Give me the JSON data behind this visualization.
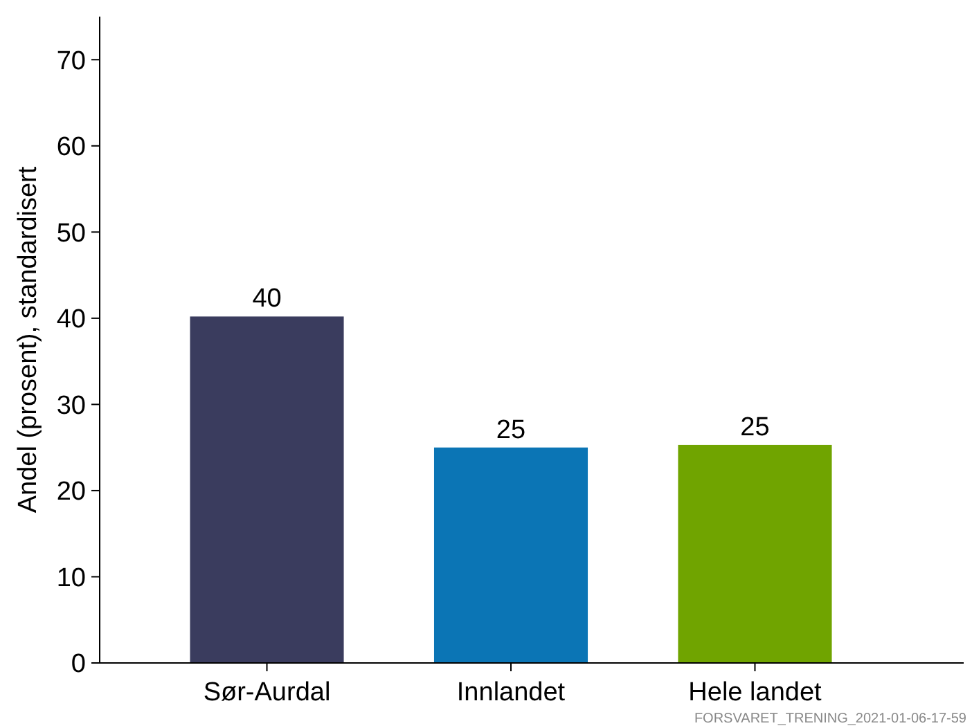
{
  "chart_data": {
    "type": "bar",
    "ylabel": "Andel (prosent), standardisert",
    "categories": [
      "Sør-Aurdal",
      "Innlandet",
      "Hele landet"
    ],
    "values": [
      40.2,
      25,
      25.3
    ],
    "value_labels": [
      "40",
      "25",
      "25"
    ],
    "colors": [
      "#3a3c5e",
      "#0b75b5",
      "#70a400"
    ],
    "ylim": [
      0,
      75
    ],
    "yticks": [
      0,
      10,
      20,
      30,
      40,
      50,
      60,
      70
    ],
    "grid": false,
    "annotations": [
      "FORSVARET_TRENING_2021-01-06-17-59"
    ]
  }
}
